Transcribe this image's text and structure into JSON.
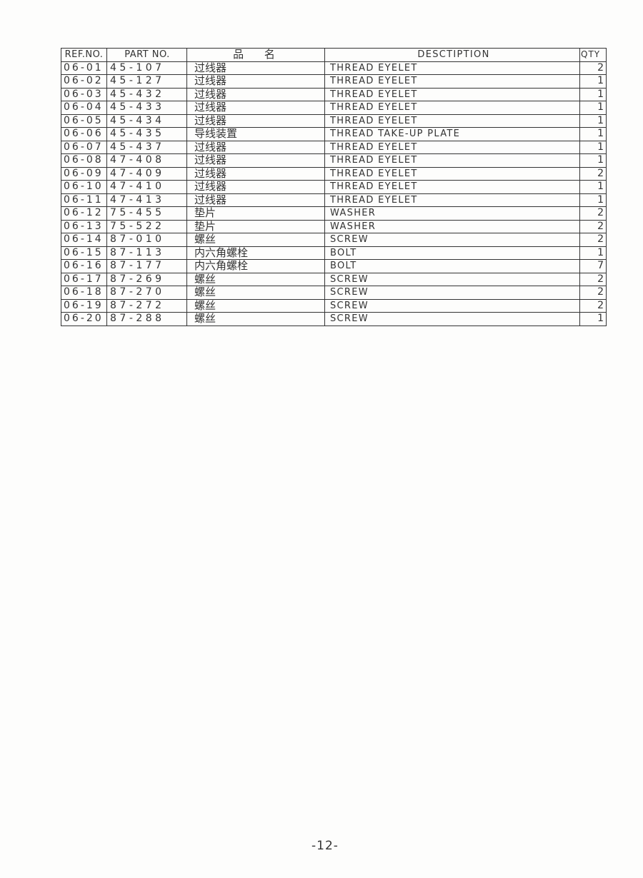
{
  "table": {
    "headers": [
      "REF.NO.",
      "PART NO.",
      "品 名",
      "DESCTIPTION",
      "QTY"
    ],
    "rows": [
      [
        "06-01",
        "45-107",
        "过线器",
        "THREAD EYELET",
        "2"
      ],
      [
        "06-02",
        "45-127",
        "过线器",
        "THREAD EYELET",
        "1"
      ],
      [
        "06-03",
        "45-432",
        "过线器",
        "THREAD EYELET",
        "1"
      ],
      [
        "06-04",
        "45-433",
        "过线器",
        "THREAD EYELET",
        "1"
      ],
      [
        "06-05",
        "45-434",
        "过线器",
        "THREAD EYELET",
        "1"
      ],
      [
        "06-06",
        "45-435",
        "导线装置",
        "THREAD TAKE-UP PLATE",
        "1"
      ],
      [
        "06-07",
        "45-437",
        "过线器",
        "THREAD EYELET",
        "1"
      ],
      [
        "06-08",
        "47-408",
        "过线器",
        "THREAD EYELET",
        "1"
      ],
      [
        "06-09",
        "47-409",
        "过线器",
        "THREAD EYELET",
        "2"
      ],
      [
        "06-10",
        "47-410",
        "过线器",
        "THREAD EYELET",
        "1"
      ],
      [
        "06-11",
        "47-413",
        "过线器",
        "THREAD EYELET",
        "1"
      ],
      [
        "06-12",
        "75-455",
        "垫片",
        "WASHER",
        "2"
      ],
      [
        "06-13",
        "75-522",
        "垫片",
        "WASHER",
        "2"
      ],
      [
        "06-14",
        "87-010",
        "螺丝",
        "SCREW",
        "2"
      ],
      [
        "06-15",
        "87-113",
        "内六角螺栓",
        "BOLT",
        "1"
      ],
      [
        "06-16",
        "87-177",
        "内六角螺栓",
        "BOLT",
        "7"
      ],
      [
        "06-17",
        "87-269",
        "螺丝",
        "SCREW",
        "2"
      ],
      [
        "06-18",
        "87-270",
        "螺丝",
        "SCREW",
        "2"
      ],
      [
        "06-19",
        "87-272",
        "螺丝",
        "SCREW",
        "2"
      ],
      [
        "06-20",
        "87-288",
        "螺丝",
        "SCREW",
        "1"
      ]
    ]
  },
  "page_number": "-12-"
}
